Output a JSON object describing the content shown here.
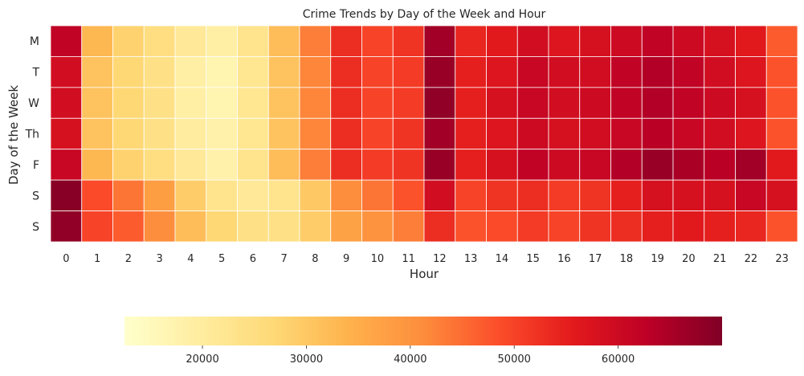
{
  "chart_data": {
    "type": "heatmap",
    "title": "Crime Trends by Day of the Week and Hour",
    "xlabel": "Hour",
    "ylabel": "Day of the Week",
    "x": [
      "0",
      "1",
      "2",
      "3",
      "4",
      "5",
      "6",
      "7",
      "8",
      "9",
      "10",
      "11",
      "12",
      "13",
      "14",
      "15",
      "16",
      "17",
      "18",
      "19",
      "20",
      "21",
      "22",
      "23"
    ],
    "y": [
      "M",
      "T",
      "W",
      "Th",
      "F",
      "S",
      "S"
    ],
    "values": [
      [
        62000,
        33000,
        28000,
        25000,
        21000,
        19000,
        23000,
        32000,
        43000,
        53000,
        50000,
        52000,
        66000,
        54000,
        56000,
        59000,
        57000,
        58000,
        60000,
        62000,
        60000,
        58000,
        56000,
        47000
      ],
      [
        59000,
        31000,
        27000,
        24000,
        19000,
        17000,
        22000,
        31000,
        42000,
        53000,
        50000,
        51000,
        67000,
        55000,
        57000,
        61000,
        59000,
        59000,
        62000,
        64000,
        62000,
        59000,
        57000,
        48000
      ],
      [
        59000,
        31000,
        27000,
        24000,
        19000,
        17000,
        22000,
        31000,
        42000,
        53000,
        50000,
        51000,
        68000,
        55000,
        58000,
        61000,
        59000,
        60000,
        62000,
        64000,
        62000,
        60000,
        58000,
        48000
      ],
      [
        58000,
        31000,
        27000,
        24000,
        20000,
        18000,
        22000,
        31000,
        42000,
        53000,
        50000,
        52000,
        66000,
        55000,
        57000,
        60000,
        58000,
        59000,
        61000,
        63000,
        61000,
        59000,
        57000,
        48000
      ],
      [
        61000,
        33000,
        28000,
        25000,
        21000,
        18000,
        23000,
        32000,
        43000,
        53000,
        51000,
        52000,
        67000,
        55000,
        58000,
        62000,
        60000,
        61000,
        64000,
        67000,
        65000,
        63000,
        66000,
        56000
      ],
      [
        69000,
        49000,
        44000,
        38000,
        29000,
        23000,
        21000,
        23000,
        30000,
        41000,
        44000,
        48000,
        59000,
        50000,
        52000,
        53000,
        51000,
        52000,
        55000,
        58000,
        58000,
        58000,
        61000,
        58000
      ],
      [
        68000,
        50000,
        47000,
        41000,
        32000,
        27000,
        24000,
        24000,
        29000,
        37000,
        40000,
        43000,
        53000,
        48000,
        49000,
        51000,
        50000,
        52000,
        53000,
        55000,
        56000,
        55000,
        54000,
        48000
      ]
    ],
    "colorbar": {
      "min": 12500,
      "max": 70000,
      "ticks": [
        "20000",
        "30000",
        "40000",
        "50000",
        "60000"
      ],
      "orientation": "horizontal",
      "colormap": "YlOrRd"
    },
    "grid": true
  }
}
